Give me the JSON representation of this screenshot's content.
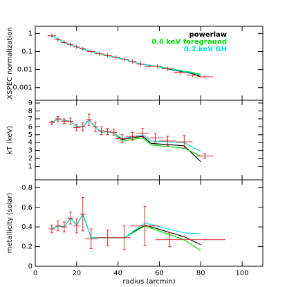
{
  "chart_data": [
    {
      "type": "errorbar",
      "ylabel": "XSPEC normalization",
      "log_y": true,
      "ylim": [
        0.0002,
        2.5
      ],
      "yticks": [
        1,
        0.1,
        0.01,
        0.001
      ],
      "xlim": [
        0,
        110
      ],
      "data_color": "#e02020",
      "x": [
        8,
        11,
        14,
        17,
        20,
        23,
        27,
        31,
        35,
        39,
        43,
        47,
        51,
        55,
        59,
        64,
        70,
        76,
        82
      ],
      "values": [
        0.75,
        0.45,
        0.32,
        0.24,
        0.18,
        0.14,
        0.1,
        0.075,
        0.06,
        0.048,
        0.038,
        0.028,
        0.02,
        0.015,
        0.015,
        0.011,
        0.007,
        0.005,
        0.004
      ],
      "xerr": [
        2,
        1.5,
        1.5,
        1.5,
        1.5,
        1.5,
        2,
        2,
        2,
        2,
        2,
        2,
        2,
        2,
        2,
        3,
        3,
        3,
        4
      ],
      "legend": "upper right",
      "series": [
        {
          "name": "powerlaw",
          "color": "#000000",
          "x": [
            8,
            14,
            20,
            27,
            35,
            43,
            51,
            59,
            64,
            70,
            76,
            80
          ],
          "values": [
            0.75,
            0.32,
            0.18,
            0.1,
            0.06,
            0.038,
            0.02,
            0.015,
            0.011,
            0.008,
            0.006,
            0.004
          ]
        },
        {
          "name": "0.6 keV foreground",
          "color": "#00e000",
          "x": [
            8,
            14,
            20,
            27,
            35,
            43,
            51,
            59,
            64,
            70,
            76,
            80
          ],
          "values": [
            0.75,
            0.32,
            0.18,
            0.1,
            0.06,
            0.038,
            0.02,
            0.015,
            0.012,
            0.009,
            0.007,
            0.0055
          ]
        },
        {
          "name": "0.2 keV GH",
          "color": "#00e0e0",
          "x": [
            8,
            14,
            20,
            27,
            35,
            43,
            51,
            59,
            64,
            70,
            76,
            80
          ],
          "values": [
            0.75,
            0.32,
            0.18,
            0.1,
            0.06,
            0.038,
            0.02,
            0.015,
            0.0115,
            0.0085,
            0.0065,
            0.0048
          ]
        }
      ]
    },
    {
      "type": "errorbar",
      "ylabel": "kT (keV)",
      "ylim": [
        -0.7,
        9.35
      ],
      "yticks": [
        1,
        2,
        3,
        4,
        5,
        6,
        7,
        8,
        9
      ],
      "xlim": [
        0,
        110
      ],
      "data_color": "#e02020",
      "x": [
        8,
        11,
        14,
        17,
        20,
        23,
        26,
        29,
        32,
        35,
        38,
        42,
        47,
        52,
        58,
        64,
        72,
        82
      ],
      "values": [
        6.5,
        7.0,
        6.7,
        6.7,
        5.9,
        6.0,
        6.9,
        6.0,
        5.5,
        5.4,
        5.3,
        4.5,
        4.8,
        5.2,
        4.6,
        4.2,
        4.1,
        2.3
      ],
      "errors": [
        0.2,
        0.3,
        0.3,
        0.4,
        0.4,
        0.5,
        0.7,
        0.6,
        0.5,
        0.4,
        0.4,
        0.5,
        0.5,
        0.6,
        0.5,
        0.6,
        0.8,
        0.3
      ],
      "xerr": [
        1.5,
        1.5,
        1.5,
        1.5,
        1.5,
        1.5,
        1.5,
        1.5,
        1.5,
        1.5,
        1.5,
        3,
        3,
        3,
        4,
        4,
        4,
        4
      ],
      "series": [
        {
          "color": "#000000",
          "x": [
            8,
            11,
            14,
            17,
            20,
            23,
            26,
            29,
            32,
            35,
            38,
            42,
            52,
            56,
            72,
            80
          ],
          "values": [
            6.5,
            7.0,
            6.8,
            6.7,
            6.0,
            6.0,
            6.9,
            6.0,
            5.3,
            5.4,
            5.2,
            4.4,
            4.8,
            3.9,
            3.6,
            1.6
          ]
        },
        {
          "color": "#00e000",
          "x": [
            8,
            11,
            14,
            17,
            20,
            23,
            26,
            29,
            32,
            35,
            38,
            42,
            52,
            56,
            72,
            80
          ],
          "values": [
            6.5,
            7.0,
            6.8,
            6.7,
            6.0,
            6.0,
            6.9,
            6.0,
            5.3,
            5.4,
            5.2,
            4.2,
            4.6,
            3.7,
            3.3,
            2.3
          ]
        },
        {
          "color": "#00e0e0",
          "x": [
            8,
            11,
            14,
            17,
            20,
            23,
            26,
            29,
            32,
            35,
            38,
            42,
            52,
            56,
            72,
            80
          ],
          "values": [
            6.5,
            7.0,
            6.8,
            6.7,
            6.0,
            6.0,
            6.9,
            6.0,
            5.3,
            5.4,
            5.2,
            4.5,
            5.0,
            4.2,
            4.0,
            2.9
          ]
        }
      ]
    },
    {
      "type": "errorbar",
      "ylabel": "metallicity (solar)",
      "xlabel": "radius (arcmin)",
      "ylim": [
        0,
        0.88
      ],
      "yticks": [
        0,
        0.2,
        0.4,
        0.6,
        0.8
      ],
      "xlim": [
        0,
        110
      ],
      "xticks": [
        0,
        20,
        40,
        60,
        80,
        100
      ],
      "data_color": "#e02020",
      "x": [
        8,
        11,
        14,
        17,
        20,
        23,
        27,
        35,
        43,
        53,
        65,
        82
      ],
      "values": [
        0.38,
        0.41,
        0.4,
        0.49,
        0.41,
        0.53,
        0.28,
        0.29,
        0.29,
        0.41,
        0.27,
        0.27
      ],
      "errors": [
        0.04,
        0.05,
        0.05,
        0.06,
        0.07,
        0.17,
        0.1,
        0.08,
        0.12,
        0.2,
        0.07,
        0
      ],
      "xerr": [
        1.5,
        1.5,
        1.5,
        1.5,
        1.5,
        1.5,
        3,
        5,
        3,
        7,
        7,
        10
      ],
      "series": [
        {
          "color": "#000000",
          "x": [
            8,
            11,
            14,
            17,
            20,
            23,
            27,
            43,
            53,
            72,
            80
          ],
          "values": [
            0.38,
            0.41,
            0.4,
            0.49,
            0.42,
            0.53,
            0.29,
            0.29,
            0.42,
            0.3,
            0.22
          ]
        },
        {
          "color": "#00e000",
          "x": [
            8,
            11,
            14,
            17,
            20,
            23,
            27,
            43,
            53,
            72,
            80
          ],
          "values": [
            0.38,
            0.41,
            0.4,
            0.49,
            0.42,
            0.53,
            0.29,
            0.29,
            0.41,
            0.27,
            0.16
          ]
        },
        {
          "color": "#00e0e0",
          "x": [
            8,
            11,
            14,
            17,
            20,
            23,
            27,
            43,
            53,
            72,
            80
          ],
          "values": [
            0.38,
            0.41,
            0.4,
            0.49,
            0.42,
            0.53,
            0.29,
            0.29,
            0.44,
            0.34,
            0.33
          ]
        }
      ]
    }
  ]
}
